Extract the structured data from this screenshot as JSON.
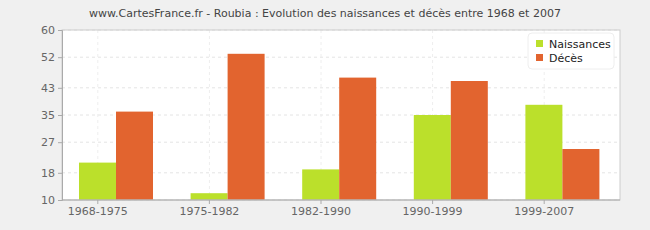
{
  "chart_data": {
    "type": "bar",
    "title": "www.CartesFrance.fr - Roubia : Evolution des naissances et décès entre 1968 et 2007",
    "categories": [
      "1968-1975",
      "1975-1982",
      "1982-1990",
      "1990-1999",
      "1999-2007"
    ],
    "series": [
      {
        "name": "Naissances",
        "color": "#bbe02b",
        "values": [
          21,
          12,
          19,
          35,
          38
        ]
      },
      {
        "name": "Décès",
        "color": "#e2642f",
        "values": [
          36,
          53,
          46,
          45,
          25
        ]
      }
    ],
    "ylim": [
      10,
      60
    ],
    "yticks": [
      10,
      18,
      27,
      35,
      43,
      52,
      60
    ],
    "grid": true,
    "legend": "top-right"
  }
}
